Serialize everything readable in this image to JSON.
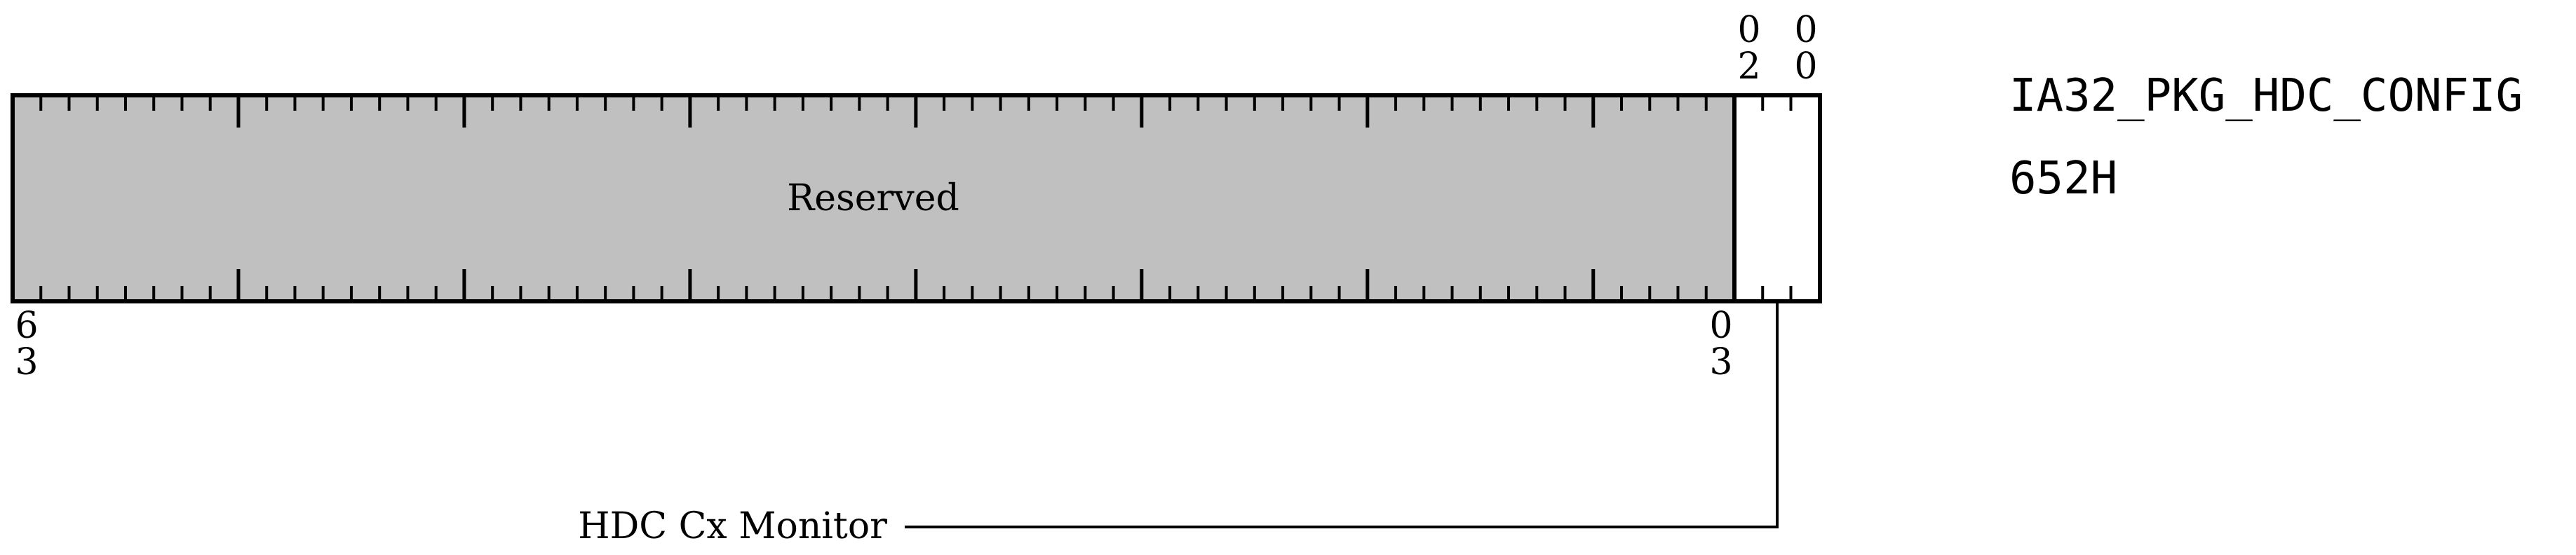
{
  "register": {
    "name": "IA32_PKG_HDC_CONFIG",
    "address": "652H"
  },
  "bit_labels": {
    "top_left": {
      "digit1": "0",
      "digit2": "2"
    },
    "top_right": {
      "digit1": "0",
      "digit2": "0"
    },
    "bottom_left": {
      "digit1": "6",
      "digit2": "3"
    },
    "bottom_right": {
      "digit1": "0",
      "digit2": "3"
    }
  },
  "fields": {
    "reserved": {
      "label": "Reserved",
      "msb": 63,
      "lsb": 3,
      "fill": "#c0c0c0"
    },
    "hdc_cx_monitor": {
      "label": "HDC Cx Monitor",
      "msb": 2,
      "lsb": 0
    }
  },
  "register_width_bits": 64,
  "colors": {
    "line": "#000000",
    "reserved_fill": "#c0c0c0",
    "background": "#ffffff"
  }
}
